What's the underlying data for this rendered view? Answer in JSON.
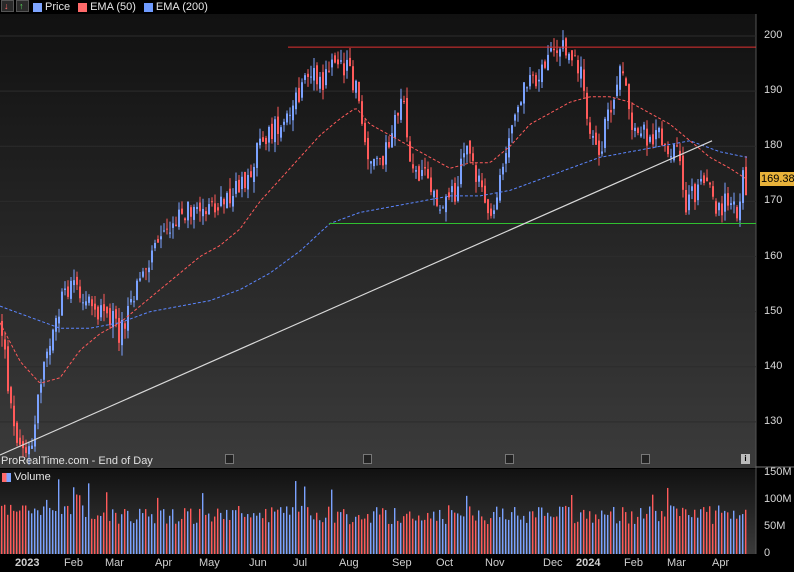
{
  "legend": [
    {
      "label": "Price",
      "color": "#7da4ff"
    },
    {
      "label": "EMA (50)",
      "color": "#ff6a6a"
    },
    {
      "label": "EMA (200)",
      "color": "#6f9bff"
    }
  ],
  "watermark": "ProRealTime.com - End of Day",
  "volume_label": "Volume",
  "last_price": "169.38",
  "colors": {
    "up": "#7ba2ff",
    "down": "#ff5a5a",
    "ema50": "#ff5a5a",
    "ema200": "#5b86ff",
    "resistance": "#e03030",
    "support": "#30c030",
    "trend": "#d8d8d8"
  },
  "chart_data": {
    "type": "candlestick",
    "price_axis": {
      "ticks": [
        130,
        140,
        150,
        160,
        170,
        180,
        190,
        200
      ],
      "range": [
        122,
        204
      ]
    },
    "volume_axis": {
      "ticks": [
        "0",
        "50M",
        "100M",
        "150M"
      ],
      "values": [
        0,
        50,
        100,
        150
      ],
      "range": [
        0,
        155
      ]
    },
    "months": [
      "2023",
      "Feb",
      "Mar",
      "Apr",
      "May",
      "Jun",
      "Jul",
      "Aug",
      "Sep",
      "Oct",
      "Nov",
      "Dec",
      "2024",
      "Feb",
      "Mar",
      "Apr"
    ],
    "series": [
      {
        "name": "Price",
        "anchors": [
          [
            0,
            148
          ],
          [
            10,
            132
          ],
          [
            18,
            126
          ],
          [
            30,
            126
          ],
          [
            42,
            140
          ],
          [
            52,
            145
          ],
          [
            62,
            153
          ],
          [
            75,
            156
          ],
          [
            90,
            150
          ],
          [
            105,
            151
          ],
          [
            118,
            146
          ],
          [
            128,
            150
          ],
          [
            140,
            156
          ],
          [
            155,
            162
          ],
          [
            170,
            166
          ],
          [
            185,
            168
          ],
          [
            200,
            170
          ],
          [
            215,
            168
          ],
          [
            230,
            171
          ],
          [
            245,
            174
          ],
          [
            258,
            180
          ],
          [
            272,
            183
          ],
          [
            285,
            186
          ],
          [
            298,
            190
          ],
          [
            310,
            194
          ],
          [
            322,
            192
          ],
          [
            335,
            196
          ],
          [
            348,
            194
          ],
          [
            356,
            190
          ],
          [
            362,
            182
          ],
          [
            372,
            176
          ],
          [
            382,
            178
          ],
          [
            395,
            186
          ],
          [
            402,
            188
          ],
          [
            410,
            176
          ],
          [
            425,
            174
          ],
          [
            440,
            168
          ],
          [
            455,
            172
          ],
          [
            465,
            180
          ],
          [
            478,
            174
          ],
          [
            490,
            166
          ],
          [
            498,
            172
          ],
          [
            510,
            184
          ],
          [
            522,
            190
          ],
          [
            535,
            192
          ],
          [
            548,
            196
          ],
          [
            560,
            198
          ],
          [
            572,
            196
          ],
          [
            580,
            194
          ],
          [
            590,
            182
          ],
          [
            600,
            180
          ],
          [
            610,
            188
          ],
          [
            620,
            194
          ],
          [
            632,
            184
          ],
          [
            642,
            182
          ],
          [
            655,
            182
          ],
          [
            668,
            180
          ],
          [
            678,
            178
          ],
          [
            685,
            170
          ],
          [
            695,
            172
          ],
          [
            705,
            174
          ],
          [
            715,
            168
          ],
          [
            725,
            170
          ],
          [
            735,
            168
          ],
          [
            742,
            174
          ],
          [
            747,
            170
          ]
        ]
      },
      {
        "name": "EMA (50)",
        "anchors": [
          [
            0,
            148
          ],
          [
            20,
            141
          ],
          [
            40,
            137
          ],
          [
            60,
            138
          ],
          [
            80,
            143
          ],
          [
            100,
            146
          ],
          [
            120,
            148
          ],
          [
            140,
            151
          ],
          [
            160,
            154
          ],
          [
            180,
            157
          ],
          [
            200,
            160
          ],
          [
            220,
            162
          ],
          [
            240,
            165
          ],
          [
            260,
            170
          ],
          [
            280,
            174
          ],
          [
            300,
            178
          ],
          [
            320,
            182
          ],
          [
            340,
            185
          ],
          [
            356,
            187
          ],
          [
            370,
            184
          ],
          [
            390,
            182
          ],
          [
            410,
            180
          ],
          [
            430,
            178
          ],
          [
            450,
            176
          ],
          [
            470,
            177
          ],
          [
            490,
            177
          ],
          [
            510,
            180
          ],
          [
            530,
            184
          ],
          [
            550,
            186
          ],
          [
            570,
            188
          ],
          [
            590,
            189
          ],
          [
            610,
            189
          ],
          [
            630,
            188
          ],
          [
            650,
            186
          ],
          [
            670,
            184
          ],
          [
            690,
            181
          ],
          [
            710,
            178
          ],
          [
            730,
            176
          ],
          [
            747,
            174
          ]
        ]
      },
      {
        "name": "EMA (200)",
        "anchors": [
          [
            0,
            151
          ],
          [
            30,
            149
          ],
          [
            60,
            147
          ],
          [
            90,
            147
          ],
          [
            120,
            148
          ],
          [
            150,
            150
          ],
          [
            180,
            151
          ],
          [
            210,
            152
          ],
          [
            240,
            154
          ],
          [
            270,
            157
          ],
          [
            300,
            161
          ],
          [
            330,
            166
          ],
          [
            360,
            168
          ],
          [
            390,
            169
          ],
          [
            420,
            170
          ],
          [
            450,
            171
          ],
          [
            480,
            171
          ],
          [
            510,
            172
          ],
          [
            540,
            174
          ],
          [
            570,
            176
          ],
          [
            600,
            178
          ],
          [
            630,
            179
          ],
          [
            660,
            180
          ],
          [
            690,
            181
          ],
          [
            720,
            179
          ],
          [
            747,
            178
          ]
        ]
      }
    ],
    "lines": {
      "resistance": 198,
      "support": 166,
      "trend_start": 124,
      "trend_end": 181
    }
  }
}
